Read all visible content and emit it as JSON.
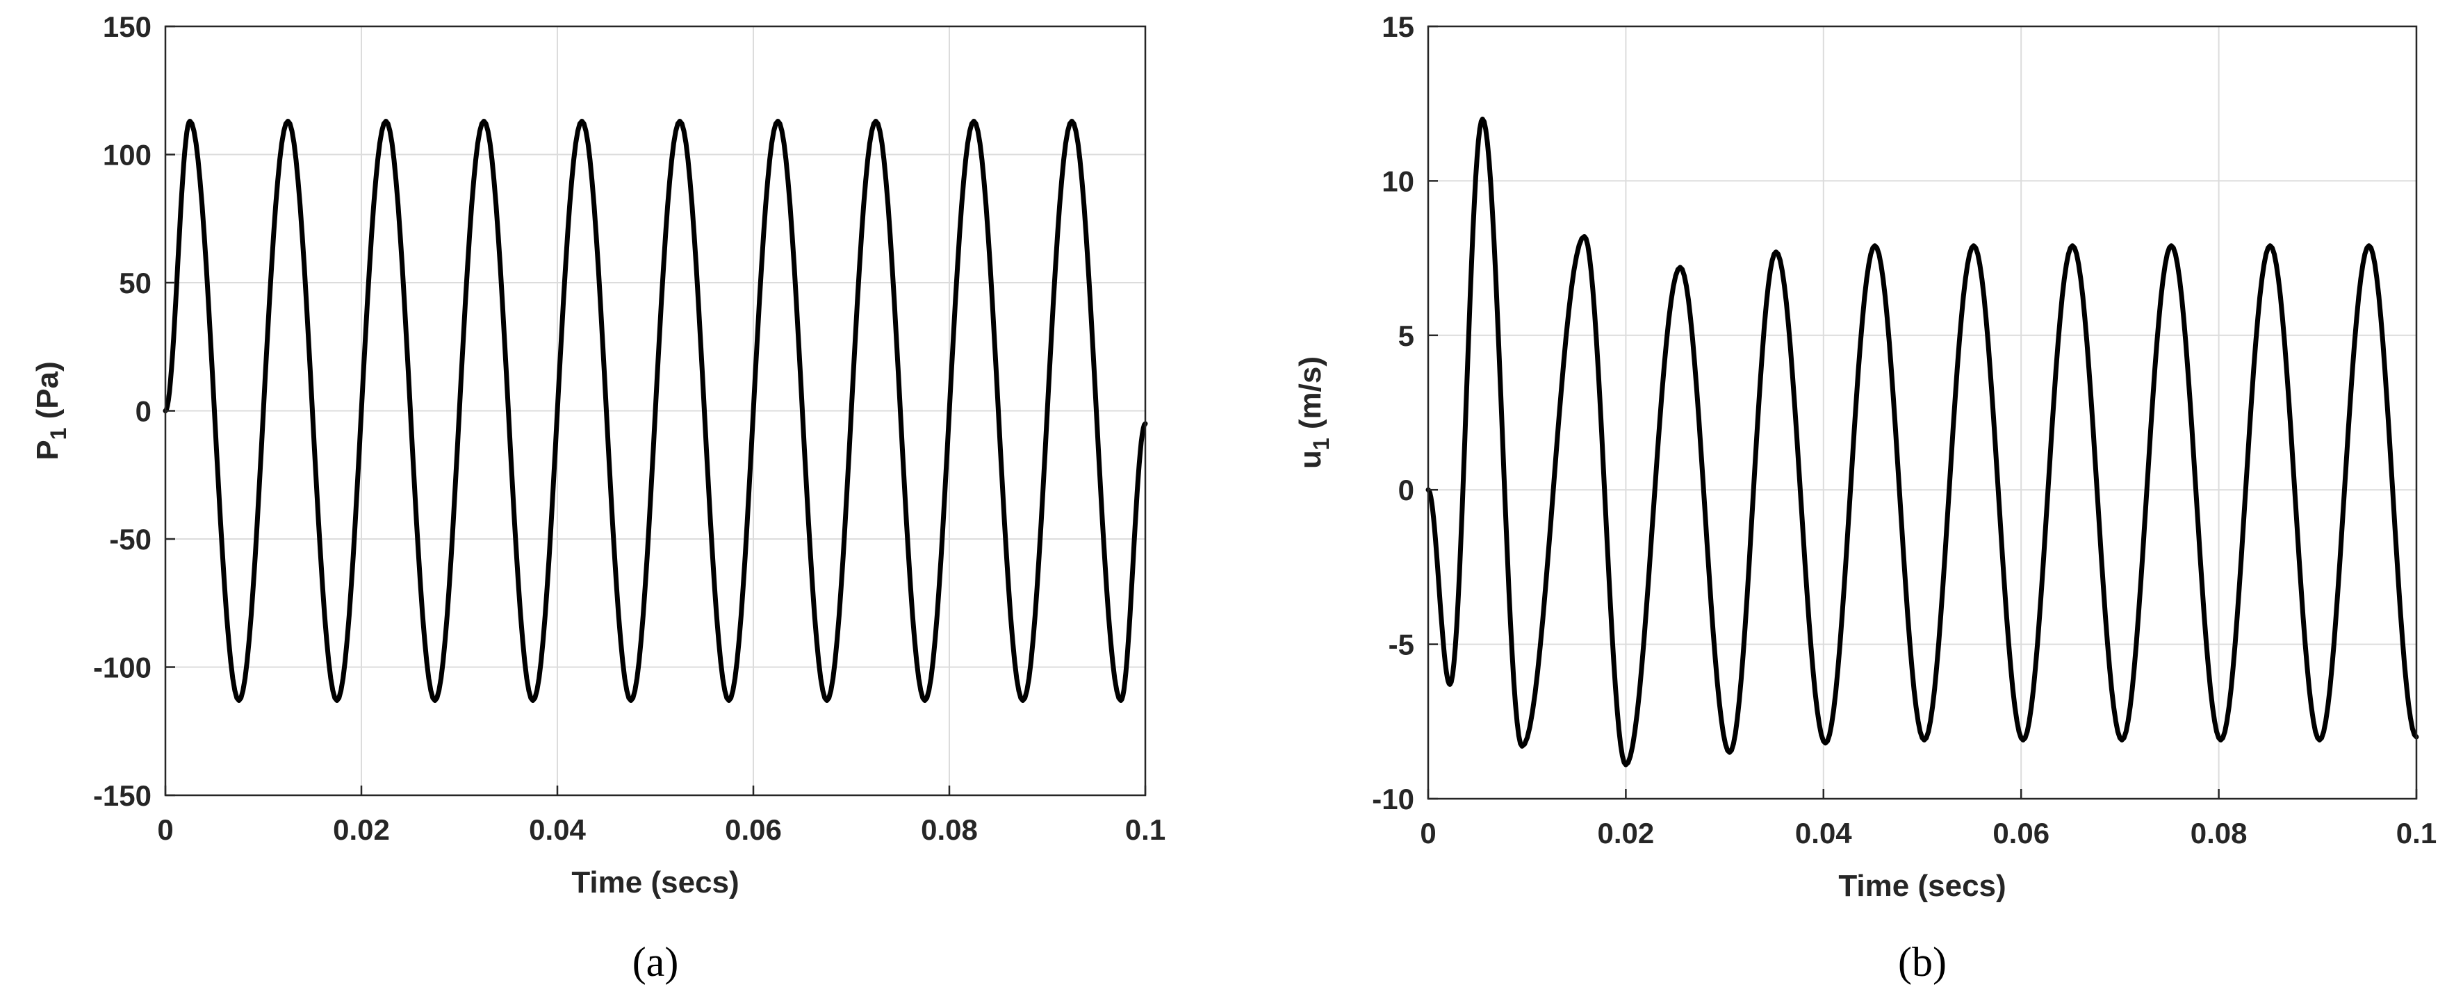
{
  "chart_data": [
    {
      "type": "line",
      "caption": "(a)",
      "xlabel": "Time (secs)",
      "ylabel_main": "P",
      "ylabel_sub": "1",
      "ylabel_rest": " (Pa)",
      "xlim": [
        0,
        0.1
      ],
      "ylim": [
        -150,
        150
      ],
      "xticks": [
        0,
        0.02,
        0.04,
        0.06,
        0.08,
        0.1
      ],
      "xtick_labels": [
        "0",
        "0.02",
        "0.04",
        "0.06",
        "0.08",
        "0.1"
      ],
      "yticks": [
        -150,
        -100,
        -50,
        0,
        50,
        100,
        150
      ],
      "ytick_labels": [
        "-150",
        "-100",
        "-50",
        "0",
        "50",
        "100",
        "150"
      ],
      "grid": true,
      "series": [
        {
          "x": [
            0,
            0.0025,
            0.0075,
            0.0125,
            0.0175,
            0.0225,
            0.0275,
            0.0325,
            0.0375,
            0.0425,
            0.0475,
            0.0525,
            0.0575,
            0.0625,
            0.0675,
            0.0725,
            0.0775,
            0.0825,
            0.0875,
            0.0925,
            0.0975,
            0.1
          ],
          "y": [
            0,
            113,
            -113,
            113,
            -113,
            113,
            -113,
            113,
            -113,
            113,
            -113,
            113,
            -113,
            113,
            -113,
            113,
            -113,
            113,
            -113,
            113,
            -113,
            -5
          ]
        }
      ]
    },
    {
      "type": "line",
      "caption": "(b)",
      "xlabel": "Time (secs)",
      "ylabel_main": "u",
      "ylabel_sub": "1",
      "ylabel_rest": " (m/s)",
      "xlim": [
        0,
        0.1
      ],
      "ylim": [
        -10,
        15
      ],
      "xticks": [
        0,
        0.02,
        0.04,
        0.06,
        0.08,
        0.1
      ],
      "xtick_labels": [
        "0",
        "0.02",
        "0.04",
        "0.06",
        "0.08",
        "0.1"
      ],
      "yticks": [
        -10,
        -5,
        0,
        5,
        10,
        15
      ],
      "ytick_labels": [
        "-10",
        "-5",
        "0",
        "5",
        "10",
        "15"
      ],
      "grid": true,
      "series": [
        {
          "x": [
            0,
            0.0022,
            0.0055,
            0.0095,
            0.0158,
            0.02,
            0.0255,
            0.0305,
            0.0352,
            0.0402,
            0.0452,
            0.0502,
            0.0552,
            0.0602,
            0.0652,
            0.0702,
            0.0752,
            0.0802,
            0.0852,
            0.0902,
            0.0952,
            0.1
          ],
          "y": [
            0,
            -6.3,
            12.0,
            -8.3,
            8.2,
            -8.9,
            7.2,
            -8.5,
            7.7,
            -8.2,
            7.9,
            -8.1,
            7.9,
            -8.1,
            7.9,
            -8.1,
            7.9,
            -8.1,
            7.9,
            -8.1,
            7.9,
            -8.0
          ]
        }
      ]
    }
  ]
}
